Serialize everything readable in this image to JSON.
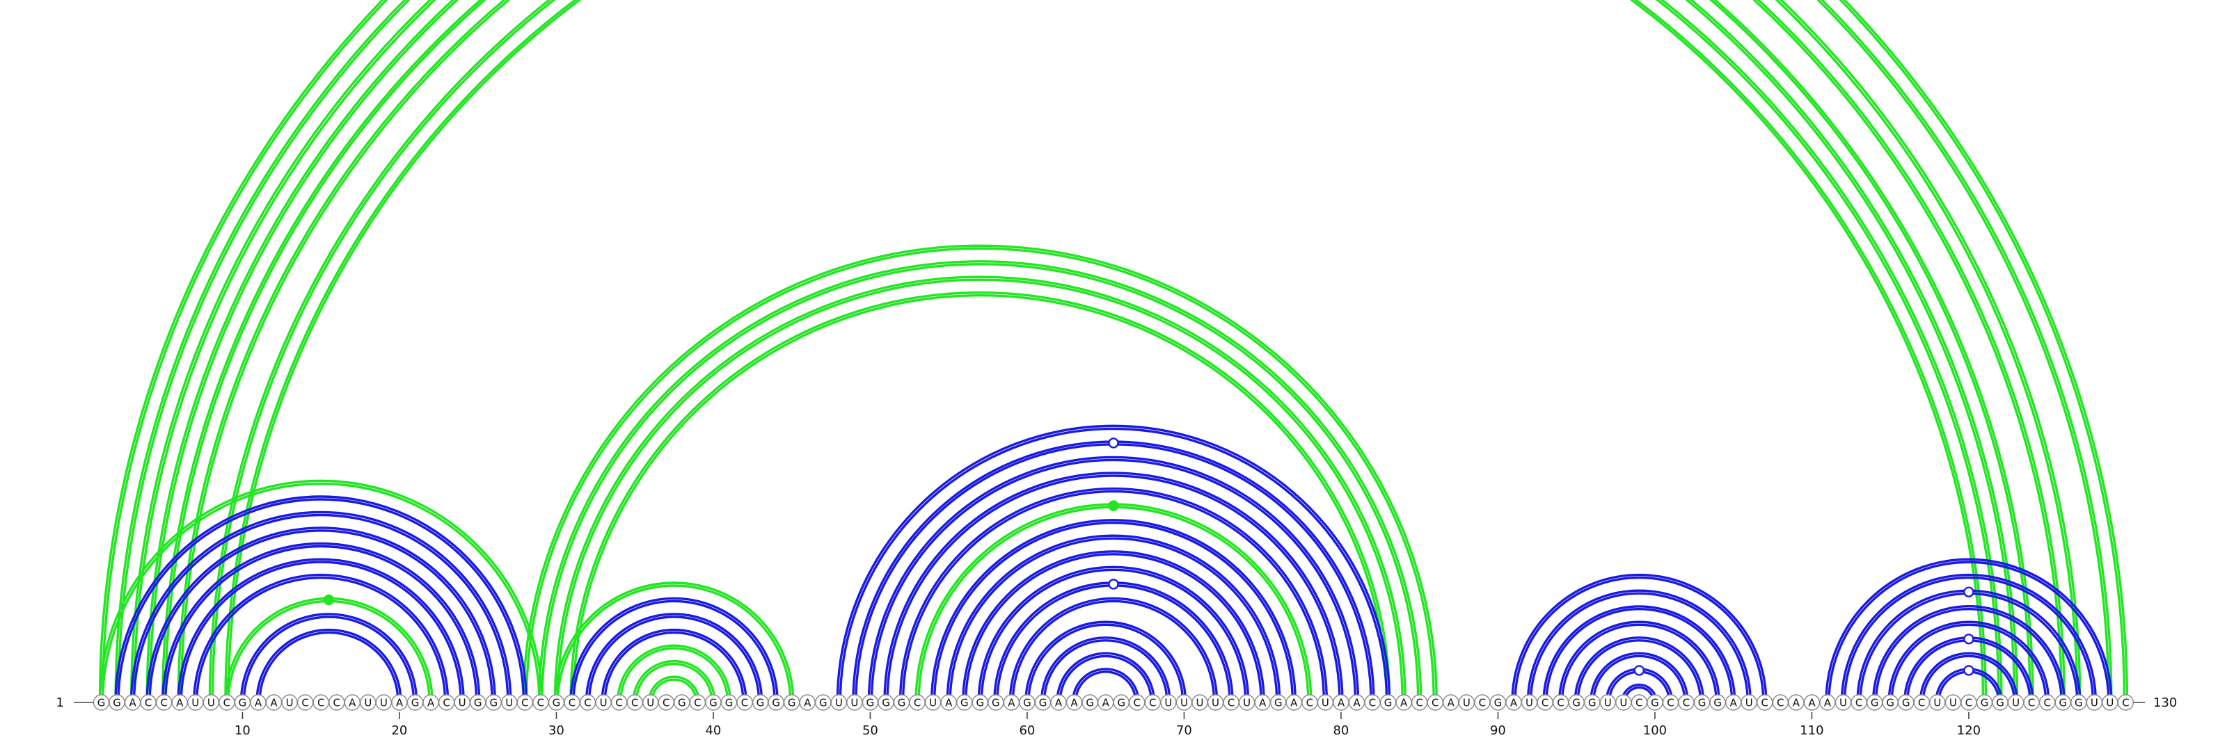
{
  "diagram": {
    "type": "rna-arc-diagram",
    "sequence": "GGACCAUUCGAAUCCCAUUAGACUGGUCCGCCUCCUCGCGGCGGGAGUUGGGCUAGGGAGGAAGAGCCUUUUCUAGACUAACGACCAUCGAUCCGGUUCGCCGGAUCCAAAUCGGGCUUCGGUCCGGUUC",
    "start_label": "1",
    "end_label": "130",
    "tick_labels": [
      "10",
      "20",
      "30",
      "40",
      "50",
      "60",
      "70",
      "80",
      "90",
      "100",
      "110",
      "120"
    ],
    "colors": {
      "green": "#22e622",
      "blue": "#1a1ae6",
      "nucleotide_outline": "#888888",
      "text": "#111111"
    },
    "arcs": [
      {
        "i": 1,
        "j": 130,
        "color": "green",
        "double": true
      },
      {
        "i": 2,
        "j": 129,
        "color": "green",
        "double": true
      },
      {
        "i": 3,
        "j": 127,
        "color": "green",
        "double": true
      },
      {
        "i": 4,
        "j": 126,
        "color": "green",
        "double": true
      },
      {
        "i": 5,
        "j": 124,
        "color": "green",
        "double": true
      },
      {
        "i": 6,
        "j": 123,
        "color": "green",
        "double": true
      },
      {
        "i": 8,
        "j": 122,
        "color": "green",
        "double": true
      },
      {
        "i": 9,
        "j": 121,
        "color": "green",
        "double": true
      },
      {
        "i": 28,
        "j": 86,
        "color": "green",
        "double": true
      },
      {
        "i": 29,
        "j": 85,
        "color": "green",
        "double": true
      },
      {
        "i": 30,
        "j": 84,
        "color": "green",
        "double": true
      },
      {
        "i": 31,
        "j": 83,
        "color": "green",
        "double": true
      },
      {
        "i": 1,
        "j": 29,
        "color": "green",
        "double": true
      },
      {
        "i": 2,
        "j": 28,
        "color": "blue",
        "double": true
      },
      {
        "i": 3,
        "j": 27,
        "color": "blue",
        "double": true
      },
      {
        "i": 4,
        "j": 26,
        "color": "blue",
        "double": true
      },
      {
        "i": 5,
        "j": 25,
        "color": "blue",
        "double": true
      },
      {
        "i": 6,
        "j": 24,
        "color": "blue",
        "double": true
      },
      {
        "i": 7,
        "j": 23,
        "color": "blue",
        "double": true
      },
      {
        "i": 9,
        "j": 22,
        "color": "green",
        "double": true
      },
      {
        "i": 10,
        "j": 21,
        "color": "blue",
        "double": true
      },
      {
        "i": 11,
        "j": 20,
        "color": "blue",
        "double": true
      },
      {
        "i": 30,
        "j": 45,
        "color": "green",
        "double": true
      },
      {
        "i": 31,
        "j": 44,
        "color": "blue",
        "double": true
      },
      {
        "i": 32,
        "j": 43,
        "color": "blue",
        "double": true
      },
      {
        "i": 33,
        "j": 42,
        "color": "blue",
        "double": true
      },
      {
        "i": 34,
        "j": 41,
        "color": "green",
        "double": true
      },
      {
        "i": 35,
        "j": 40,
        "color": "green",
        "double": true
      },
      {
        "i": 36,
        "j": 39,
        "color": "green",
        "double": true
      },
      {
        "i": 48,
        "j": 83,
        "color": "blue",
        "double": true
      },
      {
        "i": 49,
        "j": 82,
        "color": "blue",
        "double": true
      },
      {
        "i": 50,
        "j": 81,
        "color": "blue",
        "double": true
      },
      {
        "i": 51,
        "j": 80,
        "color": "blue",
        "double": true
      },
      {
        "i": 52,
        "j": 79,
        "color": "blue",
        "double": true
      },
      {
        "i": 53,
        "j": 78,
        "color": "green",
        "double": true
      },
      {
        "i": 54,
        "j": 77,
        "color": "blue",
        "double": true
      },
      {
        "i": 55,
        "j": 76,
        "color": "blue",
        "double": true
      },
      {
        "i": 56,
        "j": 75,
        "color": "blue",
        "double": true
      },
      {
        "i": 57,
        "j": 74,
        "color": "blue",
        "double": true
      },
      {
        "i": 58,
        "j": 73,
        "color": "blue",
        "double": true
      },
      {
        "i": 59,
        "j": 72,
        "color": "blue",
        "double": true
      },
      {
        "i": 60,
        "j": 70,
        "color": "blue",
        "double": true
      },
      {
        "i": 61,
        "j": 69,
        "color": "blue",
        "double": true
      },
      {
        "i": 62,
        "j": 68,
        "color": "blue",
        "double": true
      },
      {
        "i": 63,
        "j": 67,
        "color": "blue",
        "double": true
      },
      {
        "i": 91,
        "j": 107,
        "color": "blue",
        "double": true
      },
      {
        "i": 92,
        "j": 106,
        "color": "blue",
        "double": true
      },
      {
        "i": 93,
        "j": 105,
        "color": "blue",
        "double": true
      },
      {
        "i": 94,
        "j": 104,
        "color": "blue",
        "double": true
      },
      {
        "i": 95,
        "j": 103,
        "color": "blue",
        "double": true
      },
      {
        "i": 96,
        "j": 102,
        "color": "blue",
        "double": true
      },
      {
        "i": 97,
        "j": 101,
        "color": "blue",
        "double": true
      },
      {
        "i": 98,
        "j": 100,
        "color": "blue",
        "double": true
      },
      {
        "i": 111,
        "j": 129,
        "color": "blue",
        "double": true
      },
      {
        "i": 112,
        "j": 128,
        "color": "blue",
        "double": true
      },
      {
        "i": 113,
        "j": 127,
        "color": "blue",
        "double": true
      },
      {
        "i": 114,
        "j": 126,
        "color": "blue",
        "double": true
      },
      {
        "i": 115,
        "j": 125,
        "color": "blue",
        "double": true
      },
      {
        "i": 116,
        "j": 124,
        "color": "blue",
        "double": true
      },
      {
        "i": 117,
        "j": 123,
        "color": "blue",
        "double": true
      },
      {
        "i": 118,
        "j": 122,
        "color": "blue",
        "double": true
      }
    ],
    "markers": [
      {
        "i": 1,
        "j": 130,
        "color": "green",
        "filled": false
      },
      {
        "i": 9,
        "j": 22,
        "color": "green",
        "filled": true
      },
      {
        "i": 49,
        "j": 82,
        "color": "blue",
        "filled": false
      },
      {
        "i": 53,
        "j": 78,
        "color": "green",
        "filled": true
      },
      {
        "i": 58,
        "j": 73,
        "color": "blue",
        "filled": false
      },
      {
        "i": 97,
        "j": 101,
        "color": "blue",
        "filled": false
      },
      {
        "i": 113,
        "j": 127,
        "color": "blue",
        "filled": false
      },
      {
        "i": 116,
        "j": 124,
        "color": "blue",
        "filled": false
      },
      {
        "i": 118,
        "j": 122,
        "color": "blue",
        "filled": false
      }
    ]
  }
}
